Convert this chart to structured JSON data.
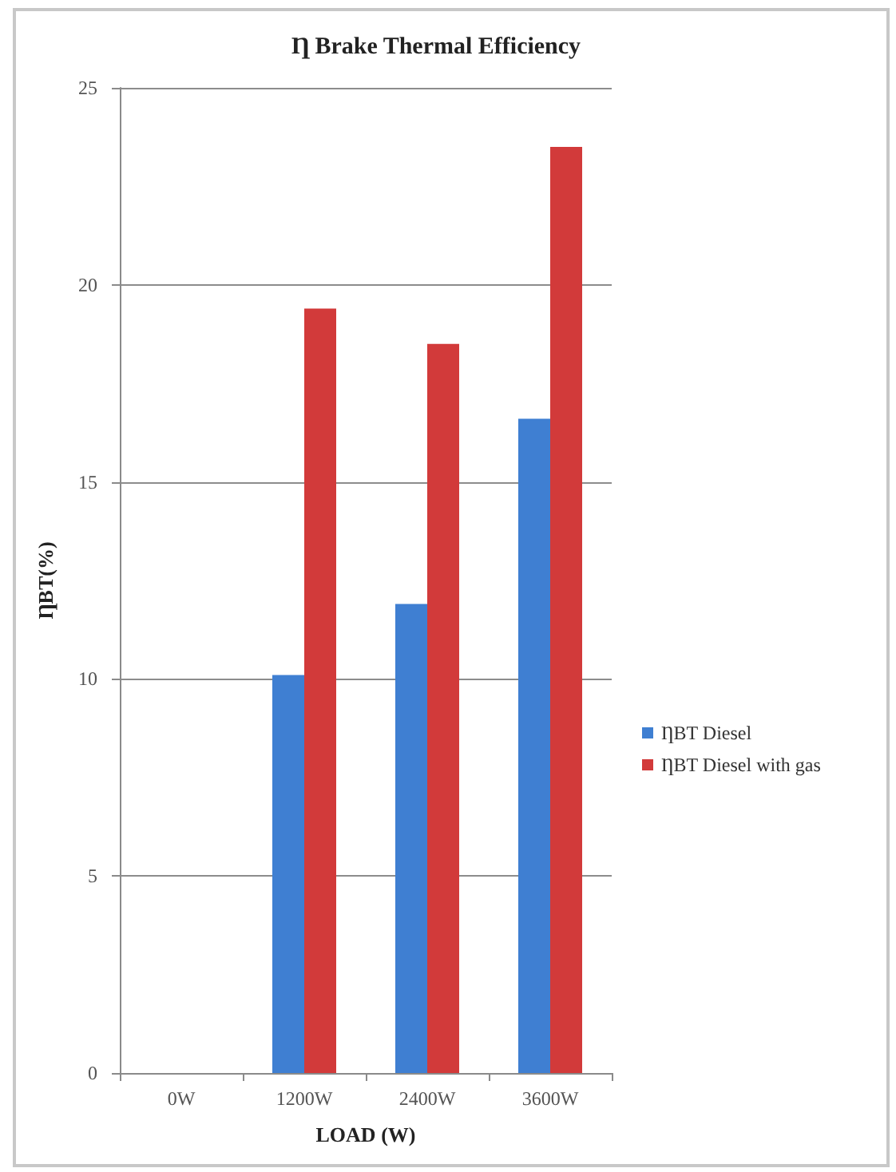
{
  "chart_data": {
    "type": "bar",
    "title": "Ƞ Brake Thermal Efficiency",
    "xlabel": "LOAD (W)",
    "ylabel": "ȠBT(%)",
    "categories": [
      "0W",
      "1200W",
      "2400W",
      "3600W"
    ],
    "series": [
      {
        "name": "ȠBT Diesel",
        "color": "#3f7fd2",
        "values": [
          0,
          10.1,
          11.9,
          16.6
        ]
      },
      {
        "name": "ȠBT Diesel with gas",
        "color": "#d23a3a",
        "values": [
          0,
          19.4,
          18.5,
          23.5
        ]
      }
    ],
    "ylim": [
      0,
      25
    ],
    "yticks": [
      0,
      5,
      10,
      15,
      20,
      25
    ],
    "grid": "y",
    "legend": "right"
  }
}
